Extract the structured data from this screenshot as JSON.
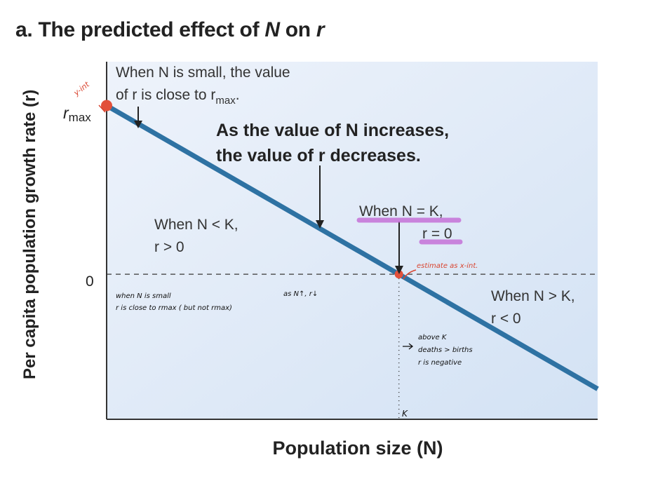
{
  "figure": {
    "title_prefix": "a.  The predicted effect of ",
    "title_var1": "N",
    "title_mid": " on ",
    "title_var2": "r"
  },
  "chart_data": {
    "type": "line",
    "xlabel": "Population size (N)",
    "ylabel": "Per capita population growth rate (r)",
    "y_tick_labels": {
      "rmax": "max",
      "rmax_base": "r",
      "zero": "0"
    },
    "x_tick_labels": {
      "K": "K"
    },
    "series": [
      {
        "points": [
          {
            "x": 0,
            "y": 1
          },
          {
            "x": 1,
            "y": 0
          },
          {
            "x": 1.68,
            "y": -0.68
          }
        ]
      }
    ],
    "xlim": [
      0,
      1.68
    ],
    "ylim": [
      -0.86,
      1.26
    ],
    "key_points": [
      {
        "x": 0,
        "y": 1
      },
      {
        "x": 1,
        "y": 0
      }
    ],
    "colors": {
      "line": "#2e72a3",
      "point": "#e2503a",
      "background": "#dce8f6",
      "highlight": "#c46ad6"
    },
    "annotations": {
      "top_left_line1": "When N is small, the value",
      "top_left_line2": "of r is close to r",
      "top_left_sub": "max",
      "center_line1": "As the value of N increases,",
      "center_line2": "the value of r decreases.",
      "left_mid_line1": "When N < K,",
      "left_mid_line2": "r > 0",
      "at_k_line1": "When N = K,",
      "at_k_line2": "r = 0",
      "right_line1": "When N > K,",
      "right_line2": "r < 0"
    },
    "handwritten": {
      "y_int": "y-int",
      "estimate": "estimate as x-int.",
      "small_line1": "when  N is small",
      "small_line2": "r is  close to rmax ( but not rmax)",
      "as_n": "as N↑, r↓",
      "above_k_line1": "above K",
      "above_k_line2": "deaths > births",
      "above_k_line3": "r is negative"
    }
  }
}
